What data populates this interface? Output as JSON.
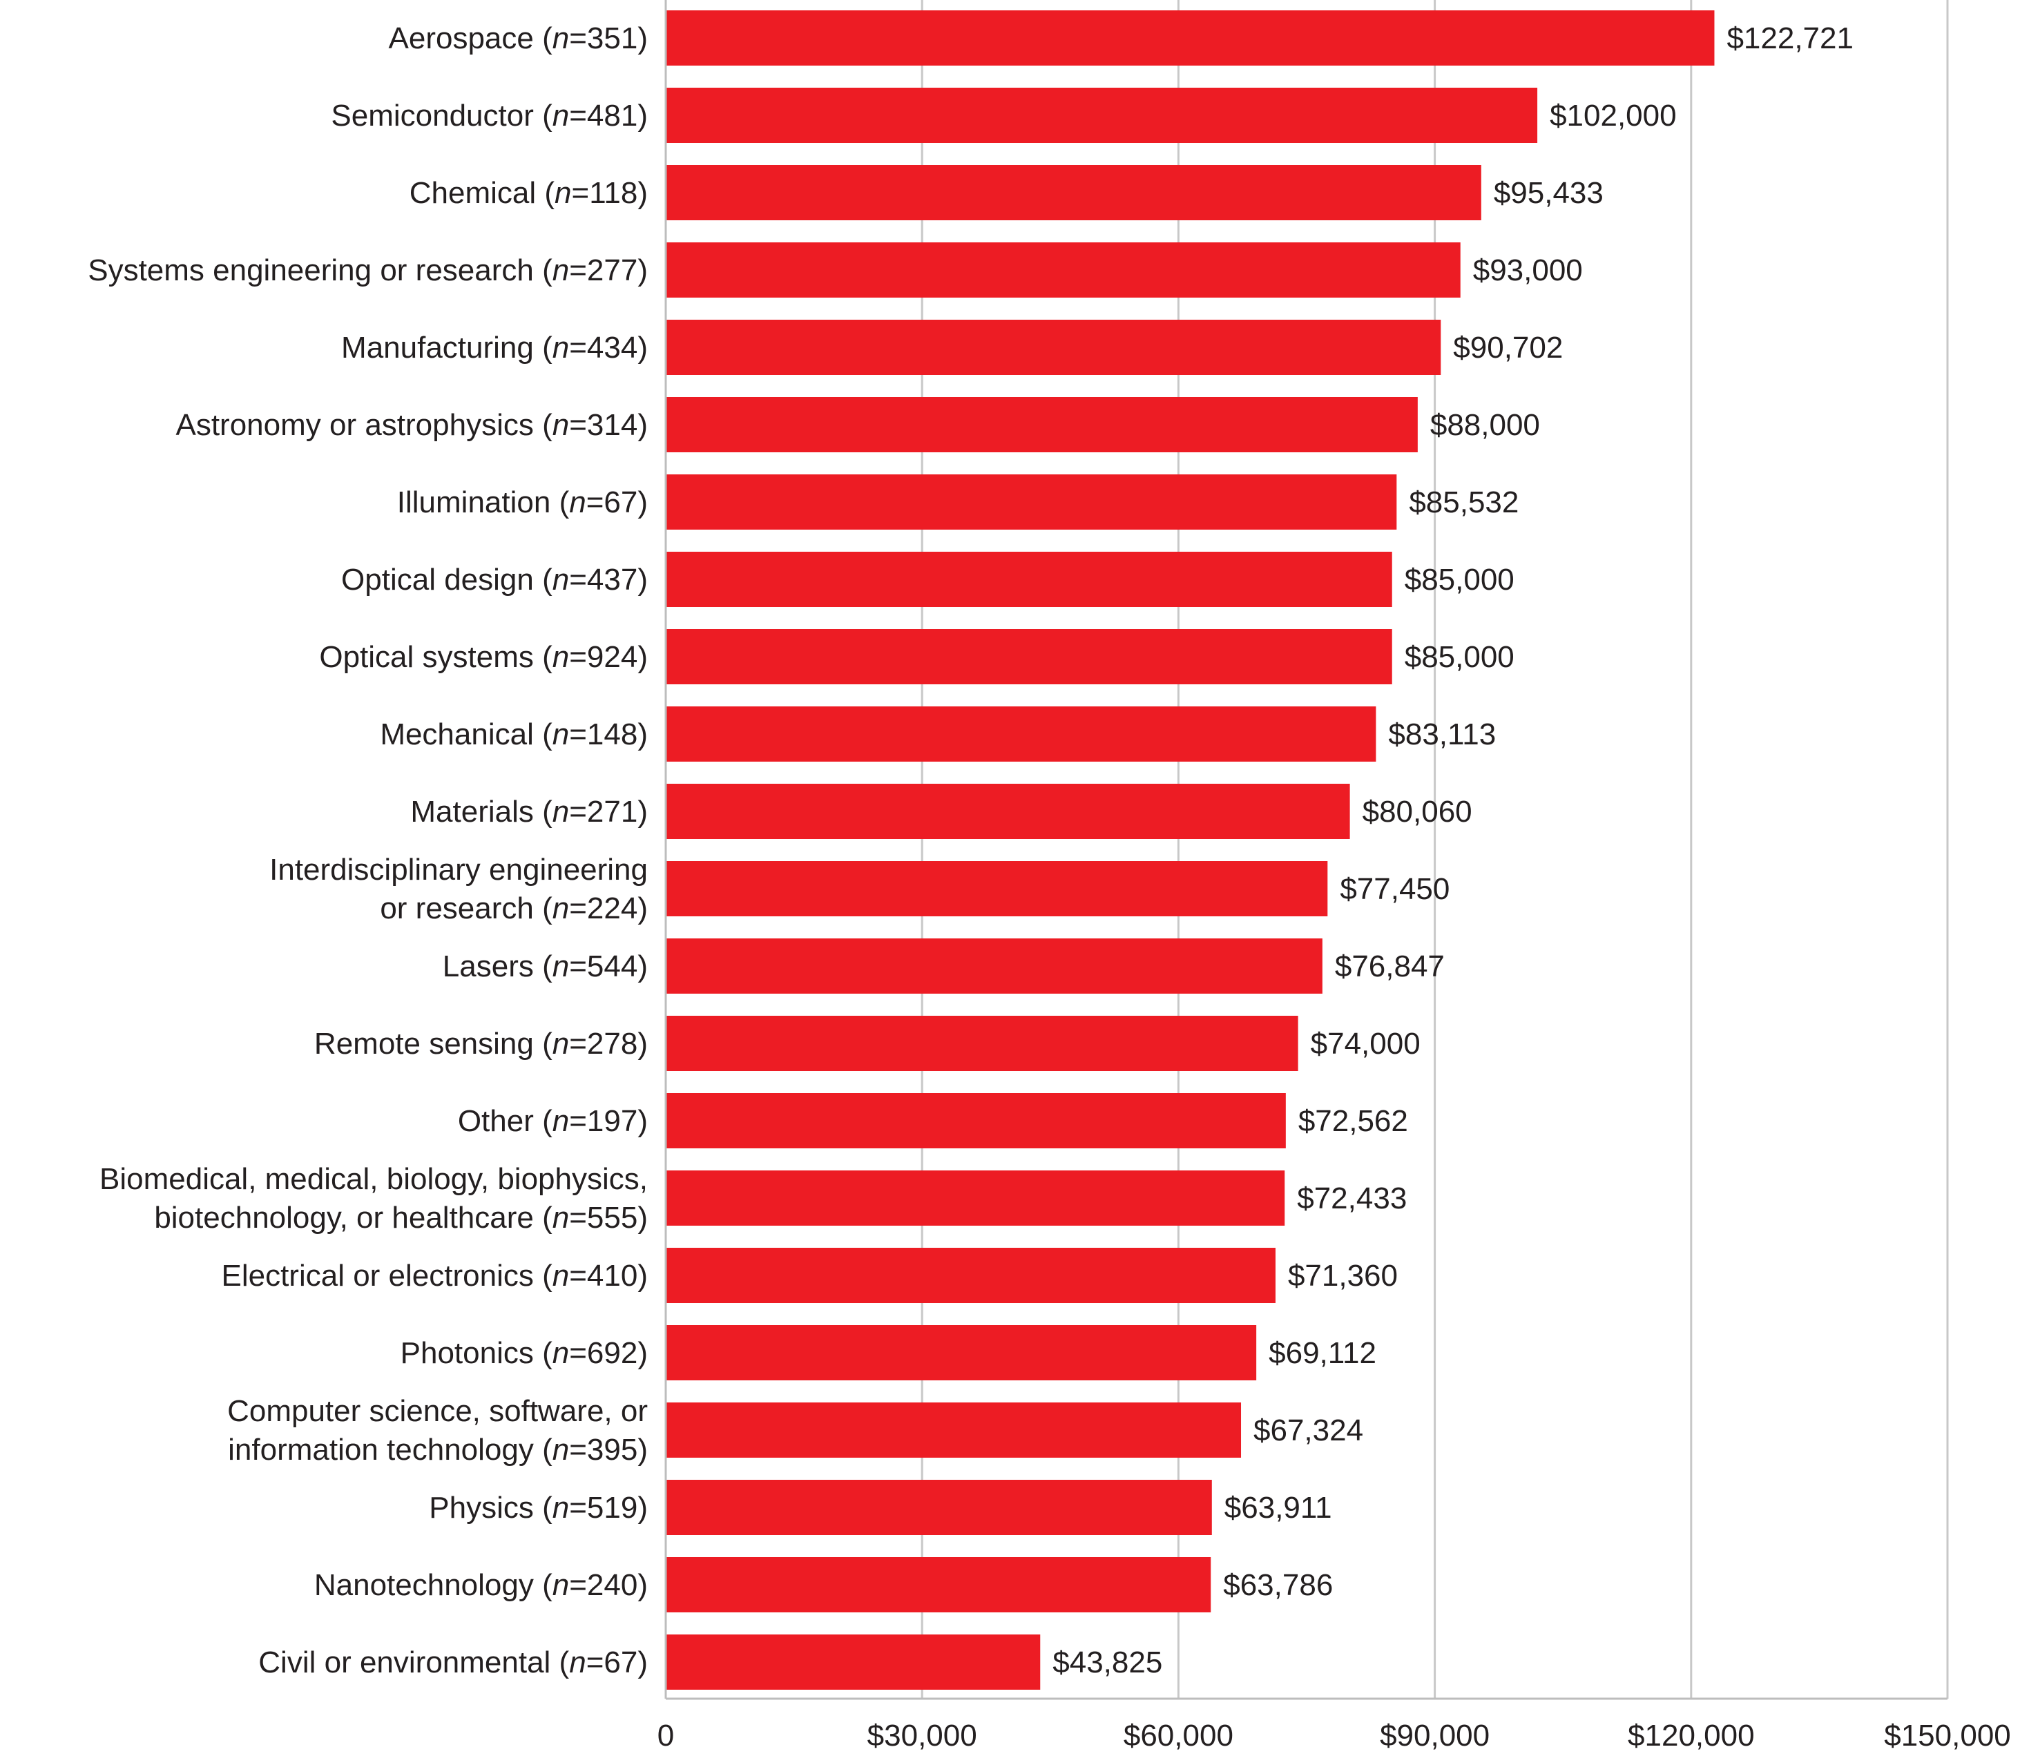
{
  "chart_data": {
    "type": "bar",
    "orientation": "horizontal",
    "title": "",
    "xlabel": "",
    "ylabel": "",
    "xlim": [
      0,
      150000
    ],
    "ticks": [
      {
        "value": 0,
        "label": "0"
      },
      {
        "value": 30000,
        "label": "$30,000"
      },
      {
        "value": 60000,
        "label": "$60,000"
      },
      {
        "value": 90000,
        "label": "$90,000"
      },
      {
        "value": 120000,
        "label": "$120,000"
      },
      {
        "value": 150000,
        "label": "$150,000"
      }
    ],
    "grid": "vertical",
    "bar_color": "#ed1c24",
    "categories": [
      {
        "lines": [
          {
            "text": "Aerospace (",
            "n": "351"
          }
        ],
        "value": 122721,
        "value_label": "$122,721"
      },
      {
        "lines": [
          {
            "text": "Semiconductor (",
            "n": "481"
          }
        ],
        "value": 102000,
        "value_label": "$102,000"
      },
      {
        "lines": [
          {
            "text": "Chemical (",
            "n": "118"
          }
        ],
        "value": 95433,
        "value_label": "$95,433"
      },
      {
        "lines": [
          {
            "text": "Systems engineering or research (",
            "n": "277"
          }
        ],
        "value": 93000,
        "value_label": "$93,000"
      },
      {
        "lines": [
          {
            "text": "Manufacturing (",
            "n": "434"
          }
        ],
        "value": 90702,
        "value_label": "$90,702"
      },
      {
        "lines": [
          {
            "text": "Astronomy or astrophysics (",
            "n": "314"
          }
        ],
        "value": 88000,
        "value_label": "$88,000"
      },
      {
        "lines": [
          {
            "text": "Illumination (",
            "n": "67"
          }
        ],
        "value": 85532,
        "value_label": "$85,532"
      },
      {
        "lines": [
          {
            "text": "Optical design (",
            "n": "437"
          }
        ],
        "value": 85000,
        "value_label": "$85,000"
      },
      {
        "lines": [
          {
            "text": "Optical systems (",
            "n": "924"
          }
        ],
        "value": 85000,
        "value_label": "$85,000"
      },
      {
        "lines": [
          {
            "text": "Mechanical (",
            "n": "148"
          }
        ],
        "value": 83113,
        "value_label": "$83,113"
      },
      {
        "lines": [
          {
            "text": "Materials (",
            "n": "271"
          }
        ],
        "value": 80060,
        "value_label": "$80,060"
      },
      {
        "lines": [
          {
            "text": "Interdisciplinary engineering"
          },
          {
            "text": "or research (",
            "n": "224"
          }
        ],
        "value": 77450,
        "value_label": "$77,450"
      },
      {
        "lines": [
          {
            "text": "Lasers (",
            "n": "544"
          }
        ],
        "value": 76847,
        "value_label": "$76,847"
      },
      {
        "lines": [
          {
            "text": "Remote sensing (",
            "n": "278"
          }
        ],
        "value": 74000,
        "value_label": "$74,000"
      },
      {
        "lines": [
          {
            "text": "Other (",
            "n": "197"
          }
        ],
        "value": 72562,
        "value_label": "$72,562"
      },
      {
        "lines": [
          {
            "text": "Biomedical, medical, biology, biophysics,"
          },
          {
            "text": "biotechnology, or healthcare (",
            "n": "555"
          }
        ],
        "value": 72433,
        "value_label": "$72,433"
      },
      {
        "lines": [
          {
            "text": "Electrical or electronics (",
            "n": "410"
          }
        ],
        "value": 71360,
        "value_label": "$71,360"
      },
      {
        "lines": [
          {
            "text": "Photonics (",
            "n": "692"
          }
        ],
        "value": 69112,
        "value_label": "$69,112"
      },
      {
        "lines": [
          {
            "text": "Computer science, software, or"
          },
          {
            "text": "information technology (",
            "n": "395"
          }
        ],
        "value": 67324,
        "value_label": "$67,324"
      },
      {
        "lines": [
          {
            "text": "Physics (",
            "n": "519"
          }
        ],
        "value": 63911,
        "value_label": "$63,911"
      },
      {
        "lines": [
          {
            "text": "Nanotechnology (",
            "n": "240"
          }
        ],
        "value": 63786,
        "value_label": "$63,786"
      },
      {
        "lines": [
          {
            "text": "Civil or environmental (",
            "n": "67"
          }
        ],
        "value": 43825,
        "value_label": "$43,825"
      }
    ]
  }
}
